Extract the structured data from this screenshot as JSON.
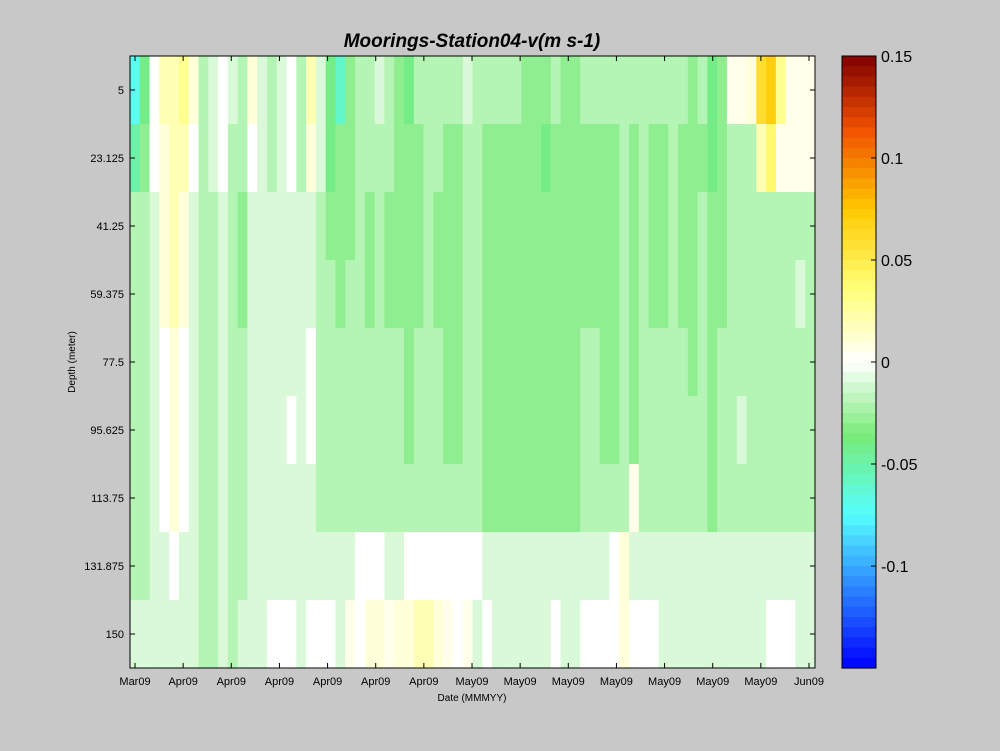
{
  "chart_data": {
    "type": "heatmap",
    "title": "Moorings-Station04-v(m s-1)",
    "xlabel": "Date (MMMYY)",
    "ylabel": "Depth (meter)",
    "x_tick_labels": [
      "Mar09",
      "Apr09",
      "Apr09",
      "Apr09",
      "Apr09",
      "Apr09",
      "Apr09",
      "May09",
      "May09",
      "May09",
      "May09",
      "May09",
      "May09",
      "May09",
      "Jun09"
    ],
    "depths": [
      5,
      23.125,
      41.25,
      59.375,
      77.5,
      95.625,
      113.75,
      131.875,
      150
    ],
    "y_tick_labels": [
      "5",
      "23.125",
      "41.25",
      "59.375",
      "77.5",
      "95.625",
      "113.75",
      "131.875",
      "150"
    ],
    "colorbar": {
      "min": -0.15,
      "max": 0.15,
      "ticks": [
        0.15,
        0.1,
        0.05,
        0,
        -0.05,
        -0.1
      ],
      "tick_labels": [
        "0.15",
        "0.1",
        "0.05",
        "0",
        "-0.05",
        "-0.1"
      ],
      "colormap": "jet-white-center"
    },
    "n_time_columns": 70,
    "rows": [
      [
        -0.07,
        -0.04,
        0,
        0.02,
        0.02,
        0.03,
        0.01,
        -0.02,
        -0.01,
        0,
        -0.01,
        -0.02,
        0.01,
        -0.01,
        -0.02,
        -0.01,
        0,
        -0.02,
        0.02,
        -0.01,
        -0.04,
        -0.06,
        -0.03,
        -0.02,
        -0.02,
        -0.01,
        -0.02,
        -0.03,
        -0.04,
        -0.02,
        -0.02,
        -0.02,
        -0.02,
        -0.02,
        -0.01,
        -0.02,
        -0.02,
        -0.02,
        -0.02,
        -0.02,
        -0.03,
        -0.03,
        -0.03,
        -0.02,
        -0.03,
        -0.03,
        -0.02,
        -0.02,
        -0.02,
        -0.02,
        -0.02,
        -0.02,
        -0.02,
        -0.02,
        -0.02,
        -0.02,
        -0.02,
        -0.03,
        -0.02,
        -0.04,
        -0.03,
        0.005,
        0.005,
        0.01,
        0.06,
        0.07,
        0.03,
        0.005,
        0.005,
        0.005
      ],
      [
        -0.05,
        -0.03,
        0,
        0.01,
        0.02,
        0.02,
        0,
        -0.02,
        -0.01,
        0,
        -0.02,
        -0.02,
        0,
        -0.01,
        -0.02,
        -0.01,
        0,
        -0.02,
        0.01,
        -0.01,
        -0.04,
        -0.03,
        -0.03,
        -0.02,
        -0.02,
        -0.02,
        -0.02,
        -0.03,
        -0.03,
        -0.03,
        -0.02,
        -0.02,
        -0.03,
        -0.03,
        -0.02,
        -0.02,
        -0.03,
        -0.03,
        -0.03,
        -0.03,
        -0.03,
        -0.03,
        -0.04,
        -0.03,
        -0.03,
        -0.03,
        -0.03,
        -0.03,
        -0.03,
        -0.03,
        -0.02,
        -0.03,
        -0.02,
        -0.03,
        -0.03,
        -0.02,
        -0.03,
        -0.03,
        -0.03,
        -0.04,
        -0.03,
        -0.02,
        -0.02,
        -0.02,
        0.02,
        0.04,
        0.005,
        0.005,
        0.005,
        0.005
      ],
      [
        -0.02,
        -0.02,
        -0.01,
        0.01,
        0.02,
        0.01,
        -0.01,
        -0.02,
        -0.02,
        -0.01,
        -0.02,
        -0.03,
        -0.01,
        -0.01,
        -0.01,
        -0.01,
        -0.01,
        -0.01,
        -0.01,
        -0.02,
        -0.03,
        -0.03,
        -0.03,
        -0.02,
        -0.03,
        -0.02,
        -0.03,
        -0.03,
        -0.03,
        -0.03,
        -0.02,
        -0.03,
        -0.03,
        -0.03,
        -0.02,
        -0.02,
        -0.03,
        -0.03,
        -0.03,
        -0.03,
        -0.03,
        -0.03,
        -0.03,
        -0.03,
        -0.03,
        -0.03,
        -0.03,
        -0.03,
        -0.03,
        -0.03,
        -0.02,
        -0.03,
        -0.02,
        -0.03,
        -0.03,
        -0.02,
        -0.03,
        -0.03,
        -0.02,
        -0.03,
        -0.03,
        -0.02,
        -0.02,
        -0.02,
        -0.02,
        -0.02,
        -0.02,
        -0.02,
        -0.02,
        -0.02
      ],
      [
        -0.02,
        -0.02,
        -0.01,
        0.01,
        0.02,
        0.01,
        -0.01,
        -0.02,
        -0.02,
        -0.01,
        -0.02,
        -0.03,
        -0.01,
        -0.01,
        -0.01,
        -0.01,
        -0.01,
        -0.01,
        -0.01,
        -0.02,
        -0.02,
        -0.03,
        -0.02,
        -0.02,
        -0.03,
        -0.02,
        -0.03,
        -0.03,
        -0.03,
        -0.03,
        -0.02,
        -0.03,
        -0.03,
        -0.03,
        -0.02,
        -0.02,
        -0.03,
        -0.03,
        -0.03,
        -0.03,
        -0.03,
        -0.03,
        -0.03,
        -0.03,
        -0.03,
        -0.03,
        -0.03,
        -0.03,
        -0.03,
        -0.03,
        -0.02,
        -0.03,
        -0.02,
        -0.03,
        -0.03,
        -0.02,
        -0.03,
        -0.03,
        -0.02,
        -0.03,
        -0.03,
        -0.02,
        -0.02,
        -0.02,
        -0.02,
        -0.02,
        -0.02,
        -0.02,
        -0.01,
        -0.02
      ],
      [
        -0.02,
        -0.02,
        -0.01,
        0,
        0.01,
        0,
        -0.01,
        -0.02,
        -0.02,
        -0.01,
        -0.02,
        -0.02,
        -0.01,
        -0.01,
        -0.01,
        -0.01,
        -0.01,
        -0.01,
        0,
        -0.02,
        -0.02,
        -0.02,
        -0.02,
        -0.02,
        -0.02,
        -0.02,
        -0.02,
        -0.02,
        -0.03,
        -0.02,
        -0.02,
        -0.02,
        -0.03,
        -0.03,
        -0.02,
        -0.02,
        -0.03,
        -0.03,
        -0.03,
        -0.03,
        -0.03,
        -0.03,
        -0.03,
        -0.03,
        -0.03,
        -0.03,
        -0.02,
        -0.02,
        -0.03,
        -0.03,
        -0.02,
        -0.03,
        -0.02,
        -0.02,
        -0.02,
        -0.02,
        -0.02,
        -0.03,
        -0.02,
        -0.03,
        -0.02,
        -0.02,
        -0.02,
        -0.02,
        -0.02,
        -0.02,
        -0.02,
        -0.02,
        -0.02,
        -0.02
      ],
      [
        -0.02,
        -0.02,
        -0.01,
        0,
        0.01,
        0,
        -0.01,
        -0.02,
        -0.02,
        -0.01,
        -0.02,
        -0.02,
        -0.01,
        -0.01,
        -0.01,
        -0.01,
        0,
        -0.01,
        0,
        -0.02,
        -0.02,
        -0.02,
        -0.02,
        -0.02,
        -0.02,
        -0.02,
        -0.02,
        -0.02,
        -0.03,
        -0.02,
        -0.02,
        -0.02,
        -0.03,
        -0.03,
        -0.02,
        -0.02,
        -0.03,
        -0.03,
        -0.03,
        -0.03,
        -0.03,
        -0.03,
        -0.03,
        -0.03,
        -0.03,
        -0.03,
        -0.02,
        -0.02,
        -0.03,
        -0.03,
        -0.02,
        -0.03,
        -0.02,
        -0.02,
        -0.02,
        -0.02,
        -0.02,
        -0.02,
        -0.02,
        -0.03,
        -0.02,
        -0.02,
        -0.01,
        -0.02,
        -0.02,
        -0.02,
        -0.02,
        -0.02,
        -0.02,
        -0.02
      ],
      [
        -0.02,
        -0.02,
        -0.01,
        0,
        0.01,
        0,
        -0.01,
        -0.02,
        -0.02,
        -0.01,
        -0.02,
        -0.02,
        -0.01,
        -0.01,
        -0.01,
        -0.01,
        -0.01,
        -0.01,
        -0.01,
        -0.02,
        -0.02,
        -0.02,
        -0.02,
        -0.02,
        -0.02,
        -0.02,
        -0.02,
        -0.02,
        -0.02,
        -0.02,
        -0.02,
        -0.02,
        -0.02,
        -0.02,
        -0.02,
        -0.02,
        -0.03,
        -0.03,
        -0.03,
        -0.03,
        -0.03,
        -0.03,
        -0.03,
        -0.03,
        -0.03,
        -0.03,
        -0.02,
        -0.02,
        -0.02,
        -0.02,
        -0.02,
        0.005,
        -0.02,
        -0.02,
        -0.02,
        -0.02,
        -0.02,
        -0.02,
        -0.02,
        -0.03,
        -0.02,
        -0.02,
        -0.02,
        -0.02,
        -0.02,
        -0.02,
        -0.02,
        -0.02,
        -0.02,
        -0.02
      ],
      [
        -0.02,
        -0.02,
        -0.01,
        -0.01,
        0,
        -0.01,
        -0.01,
        -0.02,
        -0.02,
        -0.01,
        -0.02,
        -0.02,
        -0.01,
        -0.01,
        -0.01,
        -0.01,
        -0.01,
        -0.01,
        -0.01,
        -0.01,
        -0.01,
        -0.01,
        -0.01,
        0,
        0,
        0,
        -0.01,
        -0.01,
        0,
        0,
        0,
        0,
        0,
        0,
        0,
        0,
        -0.01,
        -0.01,
        -0.01,
        -0.01,
        -0.01,
        -0.01,
        -0.01,
        -0.01,
        -0.01,
        -0.01,
        -0.01,
        -0.01,
        -0.01,
        0,
        0.01,
        -0.01,
        -0.01,
        -0.01,
        -0.01,
        -0.01,
        -0.01,
        -0.01,
        -0.01,
        -0.01,
        -0.01,
        -0.01,
        -0.01,
        -0.01,
        -0.01,
        -0.01,
        -0.01,
        -0.01,
        -0.01,
        -0.01
      ],
      [
        -0.01,
        -0.01,
        -0.01,
        -0.01,
        -0.01,
        -0.01,
        -0.01,
        -0.02,
        -0.02,
        -0.01,
        -0.02,
        -0.01,
        -0.01,
        -0.01,
        0,
        0,
        0,
        -0.01,
        0,
        0,
        0,
        -0.01,
        0.005,
        0,
        0.01,
        0.01,
        0.005,
        0.01,
        0.01,
        0.02,
        0.02,
        0.01,
        0.005,
        0,
        0.005,
        -0.01,
        0,
        -0.01,
        -0.01,
        -0.01,
        -0.01,
        -0.01,
        -0.01,
        0,
        -0.01,
        -0.01,
        0,
        0,
        0,
        0,
        0.01,
        0,
        0,
        0,
        -0.01,
        -0.01,
        -0.01,
        -0.01,
        -0.01,
        -0.01,
        -0.01,
        -0.01,
        -0.01,
        -0.01,
        -0.01,
        0,
        0,
        0,
        -0.01,
        -0.01
      ]
    ]
  }
}
